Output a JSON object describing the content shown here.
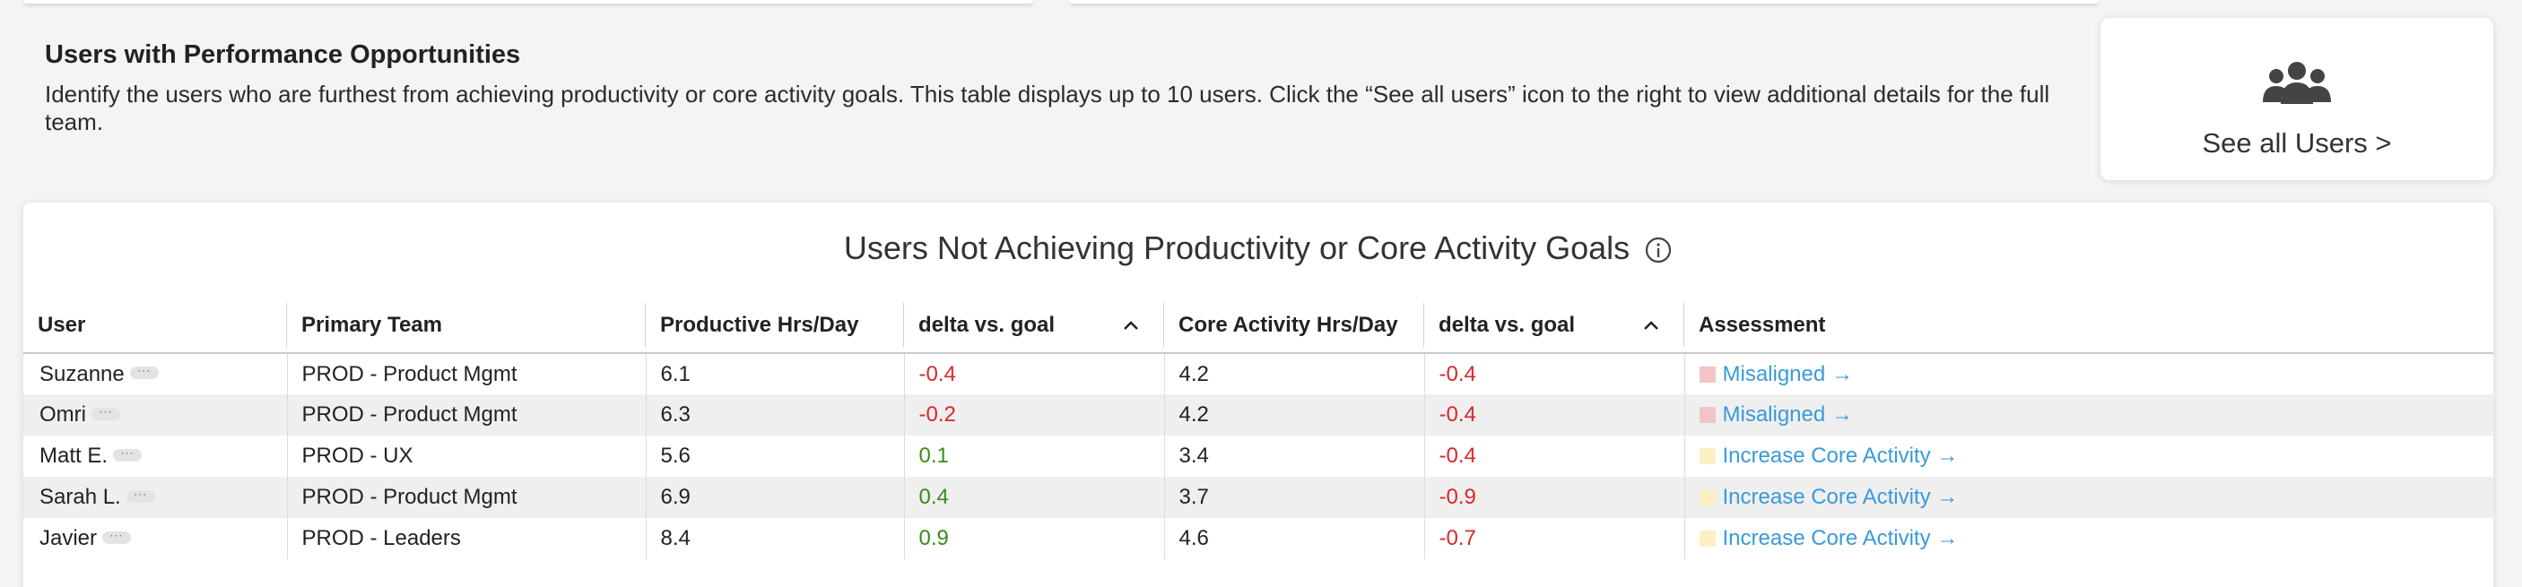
{
  "intro": {
    "title": "Users with Performance Opportunities",
    "description": "Identify the users who are furthest from achieving productivity or core activity goals. This table displays up to 10 users. Click the “See all users” icon to the right to view additional details for the full team."
  },
  "see_all": {
    "label": "See all Users >",
    "icon": "users-icon"
  },
  "table": {
    "title": "Users Not Achieving Productivity or Core Activity Goals",
    "columns": [
      "User",
      "Primary Team",
      "Productive Hrs/Day",
      "delta vs. goal",
      "Core Activity Hrs/Day",
      "delta vs. goal",
      "Assessment"
    ],
    "more_label": "···",
    "rows": [
      {
        "user": "Suzanne",
        "team": "PROD - Product Mgmt",
        "productive": "6.1",
        "delta_productive": "-0.4",
        "core": "4.2",
        "delta_core": "-0.4",
        "assessment": "Misaligned →",
        "assessment_color": "#f2c4c6"
      },
      {
        "user": "Omri",
        "team": "PROD - Product Mgmt",
        "productive": "6.3",
        "delta_productive": "-0.2",
        "core": "4.2",
        "delta_core": "-0.4",
        "assessment": "Misaligned →",
        "assessment_color": "#f2c4c6"
      },
      {
        "user": "Matt E.",
        "team": "PROD - UX",
        "productive": "5.6",
        "delta_productive": "0.1",
        "core": "3.4",
        "delta_core": "-0.4",
        "assessment": "Increase Core Activity →",
        "assessment_color": "#fdf0c4"
      },
      {
        "user": "Sarah L.",
        "team": "PROD - Product Mgmt",
        "productive": "6.9",
        "delta_productive": "0.4",
        "core": "3.7",
        "delta_core": "-0.9",
        "assessment": "Increase Core Activity →",
        "assessment_color": "#fdf0c4"
      },
      {
        "user": "Javier",
        "team": "PROD - Leaders",
        "productive": "8.4",
        "delta_productive": "0.9",
        "core": "4.6",
        "delta_core": "-0.7",
        "assessment": "Increase Core Activity →",
        "assessment_color": "#fdf0c4"
      }
    ]
  },
  "colors": {
    "negative": "#d9262c",
    "positive": "#3c8a16",
    "link": "#3a9ad9"
  }
}
